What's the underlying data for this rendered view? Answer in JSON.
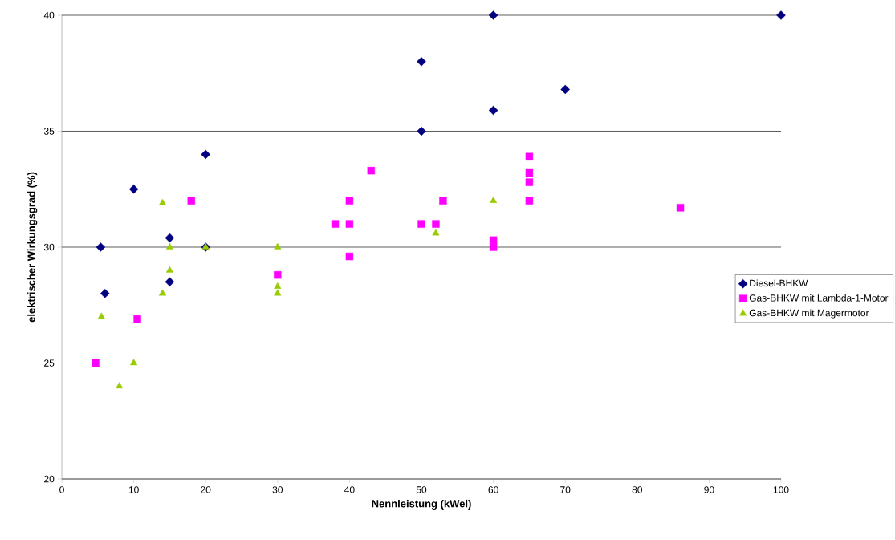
{
  "chart_data": {
    "type": "scatter",
    "xlabel": "Nennleistung (kWel)",
    "ylabel": "elektrischer Wirkungsgrad (%)",
    "xlim": [
      0,
      100
    ],
    "xticks": [
      0,
      10,
      20,
      30,
      40,
      50,
      60,
      70,
      80,
      90,
      100
    ],
    "ylim": [
      20,
      40
    ],
    "yticks": [
      20,
      25,
      30,
      35,
      40
    ],
    "grid": "y",
    "legend": "right",
    "series": [
      {
        "name": "Diesel-BHKW",
        "color": "#000080",
        "marker": "diamond",
        "x": [
          5.4,
          6,
          10,
          15,
          15,
          20,
          20,
          50,
          50,
          60,
          60,
          70,
          100
        ],
        "values": [
          30,
          28,
          32.5,
          30.4,
          28.5,
          34,
          30,
          38,
          35,
          40,
          35.9,
          36.8,
          40
        ]
      },
      {
        "name": "Gas-BHKW mit Lambda-1-Motor",
        "color": "#ff00ff",
        "marker": "square",
        "x": [
          4.7,
          10.5,
          18,
          30,
          38,
          40,
          40,
          40,
          43,
          50,
          52,
          53,
          60,
          60,
          65,
          65,
          65,
          65,
          86
        ],
        "values": [
          25,
          26.9,
          32,
          28.8,
          31,
          32,
          31,
          29.6,
          33.3,
          31,
          31,
          32,
          30.3,
          30,
          33.9,
          33.2,
          32.8,
          32,
          31.7
        ]
      },
      {
        "name": "Gas-BHKW mit Magermotor",
        "color": "#99cc00",
        "marker": "triangle",
        "x": [
          5.5,
          8,
          10,
          14,
          14,
          15,
          15,
          20,
          30,
          30,
          30,
          52,
          60
        ],
        "values": [
          27,
          24,
          25,
          31.9,
          28,
          30,
          29,
          30,
          30,
          28.3,
          28,
          30.6,
          32
        ]
      }
    ]
  }
}
